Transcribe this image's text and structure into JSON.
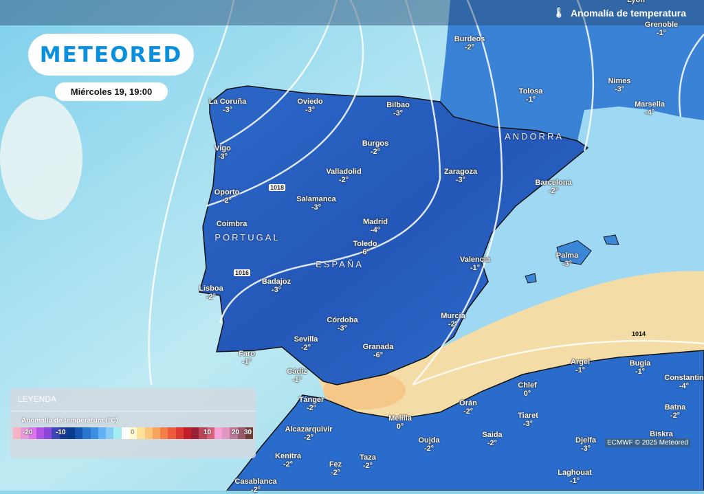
{
  "header": {
    "title": "Anomalía de temperatura",
    "icon": "thermometer-icon"
  },
  "brand": {
    "logo": "METEORED"
  },
  "date": "Miércoles 19, 19:00",
  "regions": [
    "ANDORRA",
    "PORTUGAL",
    "ESPAÑA"
  ],
  "isobars": [
    "1018",
    "1016",
    "1014"
  ],
  "cities": [
    {
      "name": "La Coruña",
      "value": "-3°"
    },
    {
      "name": "Oviedo",
      "value": "-3°"
    },
    {
      "name": "Bilbao",
      "value": "-3°"
    },
    {
      "name": "Burdeos",
      "value": "-2°"
    },
    {
      "name": "Lyon",
      "value": ""
    },
    {
      "name": "Grenoble",
      "value": "-1°"
    },
    {
      "name": "Tolosa",
      "value": "-1°"
    },
    {
      "name": "Nimes",
      "value": "-3°"
    },
    {
      "name": "Marsella",
      "value": "-4°"
    },
    {
      "name": "Burgos",
      "value": "-2°"
    },
    {
      "name": "Vigo",
      "value": "-3°"
    },
    {
      "name": "Zaragoza",
      "value": "-3°"
    },
    {
      "name": "Valladolid",
      "value": "-2°"
    },
    {
      "name": "Barcelona",
      "value": "-2°"
    },
    {
      "name": "Oporto",
      "value": "-2°"
    },
    {
      "name": "Salamanca",
      "value": "-3°"
    },
    {
      "name": "Coimbra",
      "value": ""
    },
    {
      "name": "Madrid",
      "value": "-4°"
    },
    {
      "name": "Toledo",
      "value": "-6°"
    },
    {
      "name": "Palma",
      "value": "-3°"
    },
    {
      "name": "Valencia",
      "value": "-1°"
    },
    {
      "name": "Badajoz",
      "value": "-3°"
    },
    {
      "name": "Lisboa",
      "value": "-2°"
    },
    {
      "name": "Córdoba",
      "value": "-3°"
    },
    {
      "name": "Murcia",
      "value": "-2°"
    },
    {
      "name": "Sevilla",
      "value": "-2°"
    },
    {
      "name": "Granada",
      "value": "-6°"
    },
    {
      "name": "Faro",
      "value": "-1°"
    },
    {
      "name": "Cádiz",
      "value": "-1°"
    },
    {
      "name": "Argel",
      "value": "-1°"
    },
    {
      "name": "Bugia",
      "value": "-1°"
    },
    {
      "name": "Constantin",
      "value": "-4°"
    },
    {
      "name": "Chlef",
      "value": "0°"
    },
    {
      "name": "Tánger",
      "value": "-2°"
    },
    {
      "name": "Orán",
      "value": "-2°"
    },
    {
      "name": "Batna",
      "value": "-2°"
    },
    {
      "name": "Tiaret",
      "value": "-3°"
    },
    {
      "name": "Melilla",
      "value": "0°"
    },
    {
      "name": "Alcazarquivir",
      "value": "-2°"
    },
    {
      "name": "Saida",
      "value": "-2°"
    },
    {
      "name": "Biskra",
      "value": ""
    },
    {
      "name": "Oujda",
      "value": "-2°"
    },
    {
      "name": "Djelfa",
      "value": "-3°"
    },
    {
      "name": "Kenitra",
      "value": "-2°"
    },
    {
      "name": "Fez",
      "value": "-2°"
    },
    {
      "name": "Taza",
      "value": "-2°"
    },
    {
      "name": "Laghouat",
      "value": "-1°"
    },
    {
      "name": "Casablanca",
      "value": "-2°"
    }
  ],
  "legend": {
    "title": "LEYENDA",
    "variable": "Anomalía de temperatura (°C)",
    "ticks": [
      "-20",
      "-10",
      "0",
      "10",
      "20",
      "30"
    ],
    "colors": [
      "#f4b4c4",
      "#e89ad8",
      "#de74ec",
      "#b054e4",
      "#8a46d8",
      "#3c46b4",
      "#1a3a98",
      "#0a3c8c",
      "#1656b0",
      "#2a76cc",
      "#3c8ee0",
      "#62b0f4",
      "#86caf6",
      "#a4ecf0",
      "#ffffff",
      "#fffad0",
      "#fde09a",
      "#fcc47a",
      "#f8a35e",
      "#f47e48",
      "#ee5a3c",
      "#dc3a30",
      "#c21e2a",
      "#9a2036",
      "#b84456",
      "#d86078",
      "#f4a2d8",
      "#e098c0",
      "#c07898",
      "#9a5a6a",
      "#6e3e30"
    ]
  },
  "credit": "ECMWF © 2025 Meteored"
}
